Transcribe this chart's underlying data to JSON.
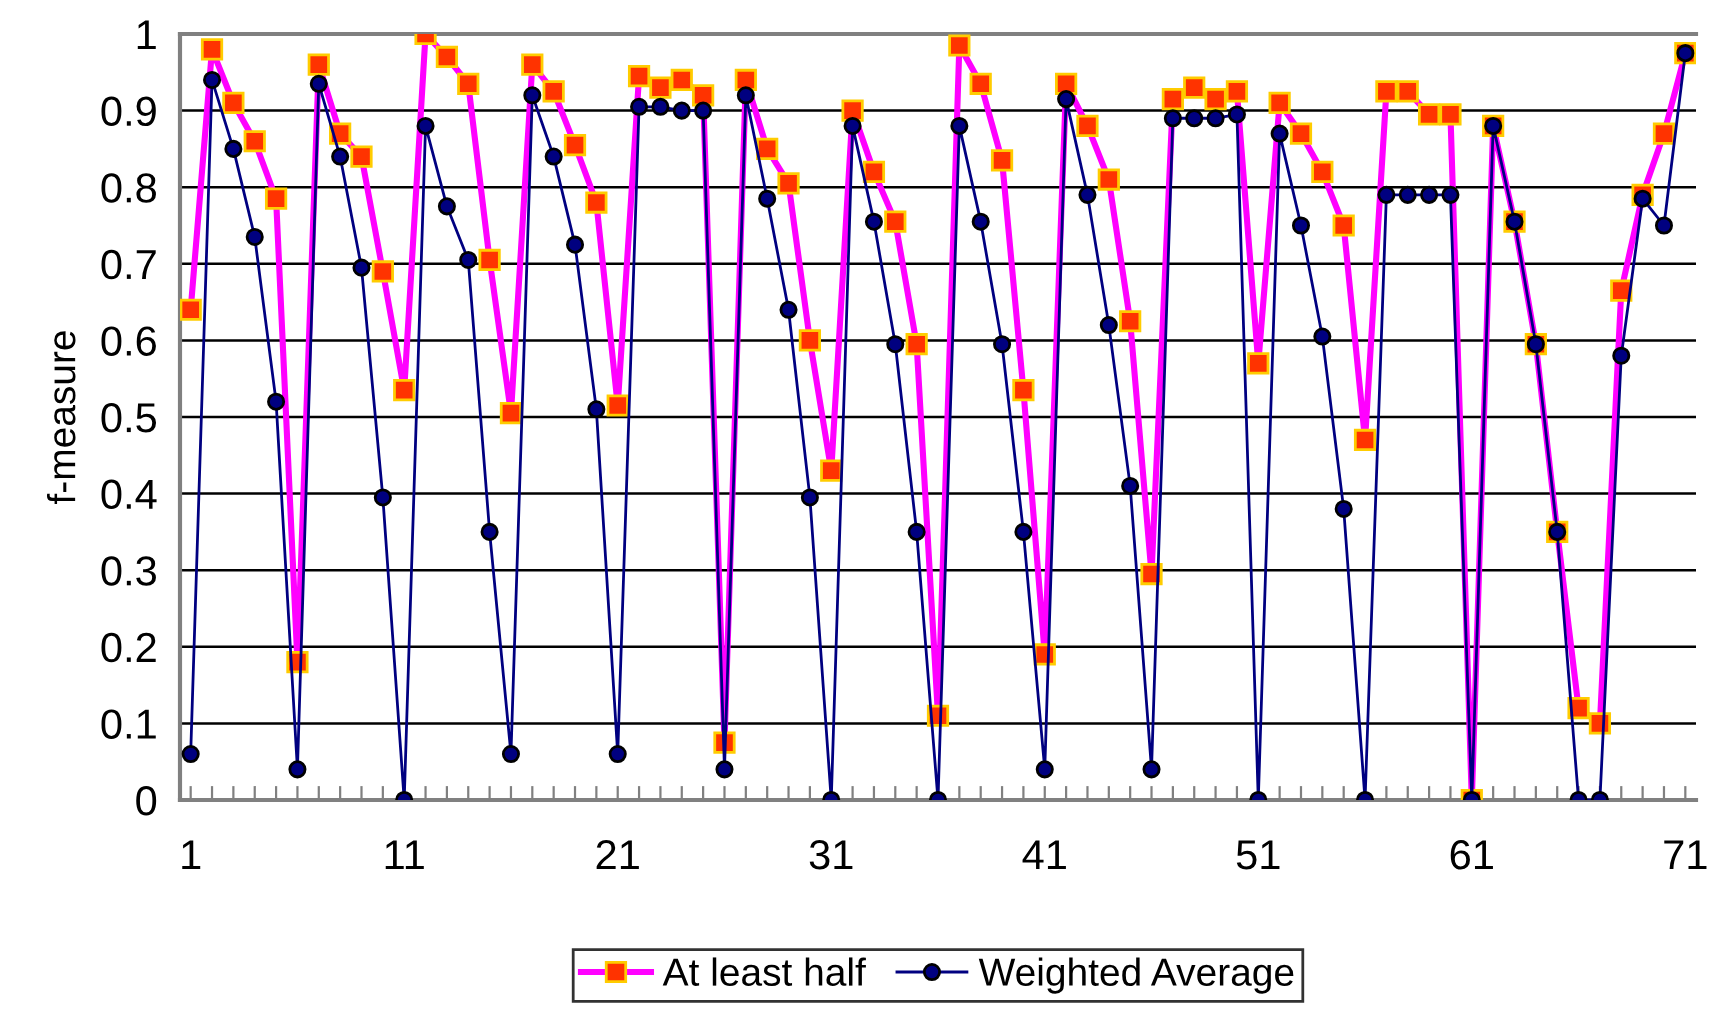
{
  "chart_data": {
    "type": "line",
    "ylabel": "f-measure",
    "x": [
      1,
      2,
      3,
      4,
      5,
      6,
      7,
      8,
      9,
      10,
      11,
      12,
      13,
      14,
      15,
      16,
      17,
      18,
      19,
      20,
      21,
      22,
      23,
      24,
      25,
      26,
      27,
      28,
      29,
      30,
      31,
      32,
      33,
      34,
      35,
      36,
      37,
      38,
      39,
      40,
      41,
      42,
      43,
      44,
      45,
      46,
      47,
      48,
      49,
      50,
      51,
      52,
      53,
      54,
      55,
      56,
      57,
      58,
      59,
      60,
      61,
      62,
      63,
      64,
      65,
      66,
      67,
      68,
      69,
      70,
      71
    ],
    "series": [
      {
        "name": "At least half",
        "color": "#ff00ff",
        "marker": "square",
        "values": [
          0.64,
          0.98,
          0.91,
          0.86,
          0.785,
          0.18,
          0.96,
          0.87,
          0.84,
          0.69,
          0.535,
          1.0,
          0.97,
          0.935,
          0.705,
          0.505,
          0.96,
          0.925,
          0.855,
          0.78,
          0.515,
          0.945,
          0.93,
          0.94,
          0.92,
          0.075,
          0.94,
          0.85,
          0.805,
          0.6,
          0.43,
          0.9,
          0.82,
          0.755,
          0.595,
          0.11,
          0.985,
          0.935,
          0.835,
          0.535,
          0.19,
          0.935,
          0.88,
          0.81,
          0.625,
          0.295,
          0.915,
          0.93,
          0.915,
          0.925,
          0.57,
          0.91,
          0.87,
          0.82,
          0.75,
          0.47,
          0.925,
          0.925,
          0.895,
          0.895,
          0.0,
          0.88,
          0.755,
          0.595,
          0.35,
          0.12,
          0.1,
          0.665,
          0.79,
          0.87,
          0.975
        ]
      },
      {
        "name": "Weighted Average",
        "color": "#000080",
        "marker": "circle",
        "values": [
          0.06,
          0.94,
          0.85,
          0.735,
          0.52,
          0.04,
          0.935,
          0.84,
          0.695,
          0.395,
          0.0,
          0.88,
          0.775,
          0.705,
          0.35,
          0.06,
          0.92,
          0.84,
          0.725,
          0.51,
          0.06,
          0.905,
          0.905,
          0.9,
          0.9,
          0.04,
          0.92,
          0.785,
          0.64,
          0.395,
          0.0,
          0.88,
          0.755,
          0.595,
          0.35,
          0.0,
          0.88,
          0.755,
          0.595,
          0.35,
          0.04,
          0.915,
          0.79,
          0.62,
          0.41,
          0.04,
          0.89,
          0.89,
          0.89,
          0.895,
          0.0,
          0.87,
          0.75,
          0.605,
          0.38,
          0.0,
          0.79,
          0.79,
          0.79,
          0.79,
          0.0,
          0.88,
          0.755,
          0.595,
          0.35,
          0.0,
          0.0,
          0.58,
          0.785,
          0.75,
          0.975
        ]
      }
    ],
    "xlim": [
      0.5,
      71.5
    ],
    "xticks": [
      1,
      {
        "value": 2,
        "label": null
      },
      {
        "value": 3,
        "label": null
      },
      {
        "value": 4,
        "label": null
      },
      {
        "value": 5,
        "label": null
      },
      {
        "value": 6,
        "label": null
      },
      {
        "value": 7,
        "label": null
      },
      {
        "value": 8,
        "label": null
      },
      {
        "value": 9,
        "label": null
      },
      {
        "value": 10,
        "label": null
      },
      11,
      {
        "value": 12,
        "label": null
      },
      {
        "value": 13,
        "label": null
      },
      {
        "value": 14,
        "label": null
      },
      {
        "value": 15,
        "label": null
      },
      {
        "value": 16,
        "label": null
      },
      {
        "value": 17,
        "label": null
      },
      {
        "value": 18,
        "label": null
      },
      {
        "value": 19,
        "label": null
      },
      {
        "value": 20,
        "label": null
      },
      21,
      {
        "value": 22,
        "label": null
      },
      {
        "value": 23,
        "label": null
      },
      {
        "value": 24,
        "label": null
      },
      {
        "value": 25,
        "label": null
      },
      {
        "value": 26,
        "label": null
      },
      {
        "value": 27,
        "label": null
      },
      {
        "value": 28,
        "label": null
      },
      {
        "value": 29,
        "label": null
      },
      {
        "value": 30,
        "label": null
      },
      31,
      {
        "value": 32,
        "label": null
      },
      {
        "value": 33,
        "label": null
      },
      {
        "value": 34,
        "label": null
      },
      {
        "value": 35,
        "label": null
      },
      {
        "value": 36,
        "label": null
      },
      {
        "value": 37,
        "label": null
      },
      {
        "value": 38,
        "label": null
      },
      {
        "value": 39,
        "label": null
      },
      {
        "value": 40,
        "label": null
      },
      41,
      {
        "value": 42,
        "label": null
      },
      {
        "value": 43,
        "label": null
      },
      {
        "value": 44,
        "label": null
      },
      {
        "value": 45,
        "label": null
      },
      {
        "value": 46,
        "label": null
      },
      {
        "value": 47,
        "label": null
      },
      {
        "value": 48,
        "label": null
      },
      {
        "value": 49,
        "label": null
      },
      {
        "value": 50,
        "label": null
      },
      51,
      {
        "value": 52,
        "label": null
      },
      {
        "value": 53,
        "label": null
      },
      {
        "value": 54,
        "label": null
      },
      {
        "value": 55,
        "label": null
      },
      {
        "value": 56,
        "label": null
      },
      {
        "value": 57,
        "label": null
      },
      {
        "value": 58,
        "label": null
      },
      {
        "value": 59,
        "label": null
      },
      {
        "value": 60,
        "label": null
      },
      61,
      {
        "value": 62,
        "label": null
      },
      {
        "value": 63,
        "label": null
      },
      {
        "value": 64,
        "label": null
      },
      {
        "value": 65,
        "label": null
      },
      {
        "value": 66,
        "label": null
      },
      {
        "value": 67,
        "label": null
      },
      {
        "value": 68,
        "label": null
      },
      {
        "value": 69,
        "label": null
      },
      {
        "value": 70,
        "label": null
      },
      71
    ],
    "ylim": [
      0,
      1
    ],
    "yticks": [
      0,
      0.1,
      0.2,
      0.3,
      0.4,
      0.5,
      0.6,
      0.7,
      0.8,
      0.9,
      1
    ],
    "grid": "y",
    "legend": "bottom",
    "line_style": "solid"
  }
}
